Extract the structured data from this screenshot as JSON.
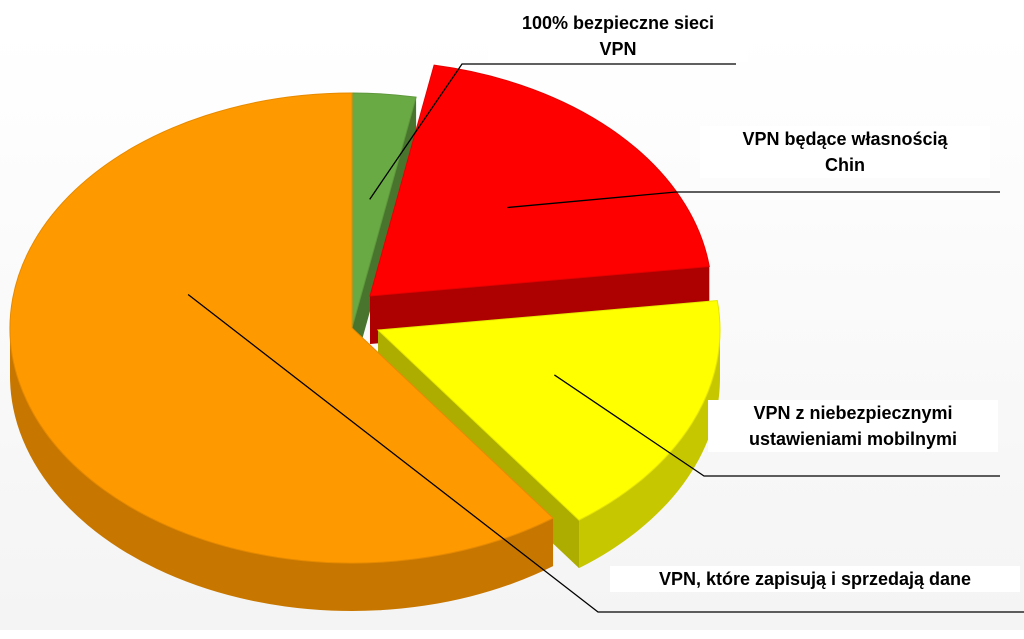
{
  "chart_data": {
    "type": "pie",
    "title": "",
    "slices": [
      {
        "label": "100% bezpieczne sieci VPN",
        "value": 3,
        "color": "#6aaa44"
      },
      {
        "label": "VPN będące własnością Chin",
        "value": 20,
        "color": "#ff0000"
      },
      {
        "label": "VPN z niebezpiecznymi ustawieniami mobilnymi",
        "value": 17,
        "color": "#ffff00"
      },
      {
        "label": "VPN, które zapisują i sprzedają dane",
        "value": 60,
        "color": "#ff9900"
      }
    ],
    "exploded": true,
    "three_d": true
  },
  "labels": {
    "slice0": [
      "100% bezpieczne sieci",
      "VPN"
    ],
    "slice1": [
      "VPN będące własnością",
      "Chin"
    ],
    "slice2": [
      "VPN z niebezpiecznymi",
      "ustawieniami mobilnymi"
    ],
    "slice3": [
      "VPN, które zapisują i sprzedają dane"
    ]
  }
}
